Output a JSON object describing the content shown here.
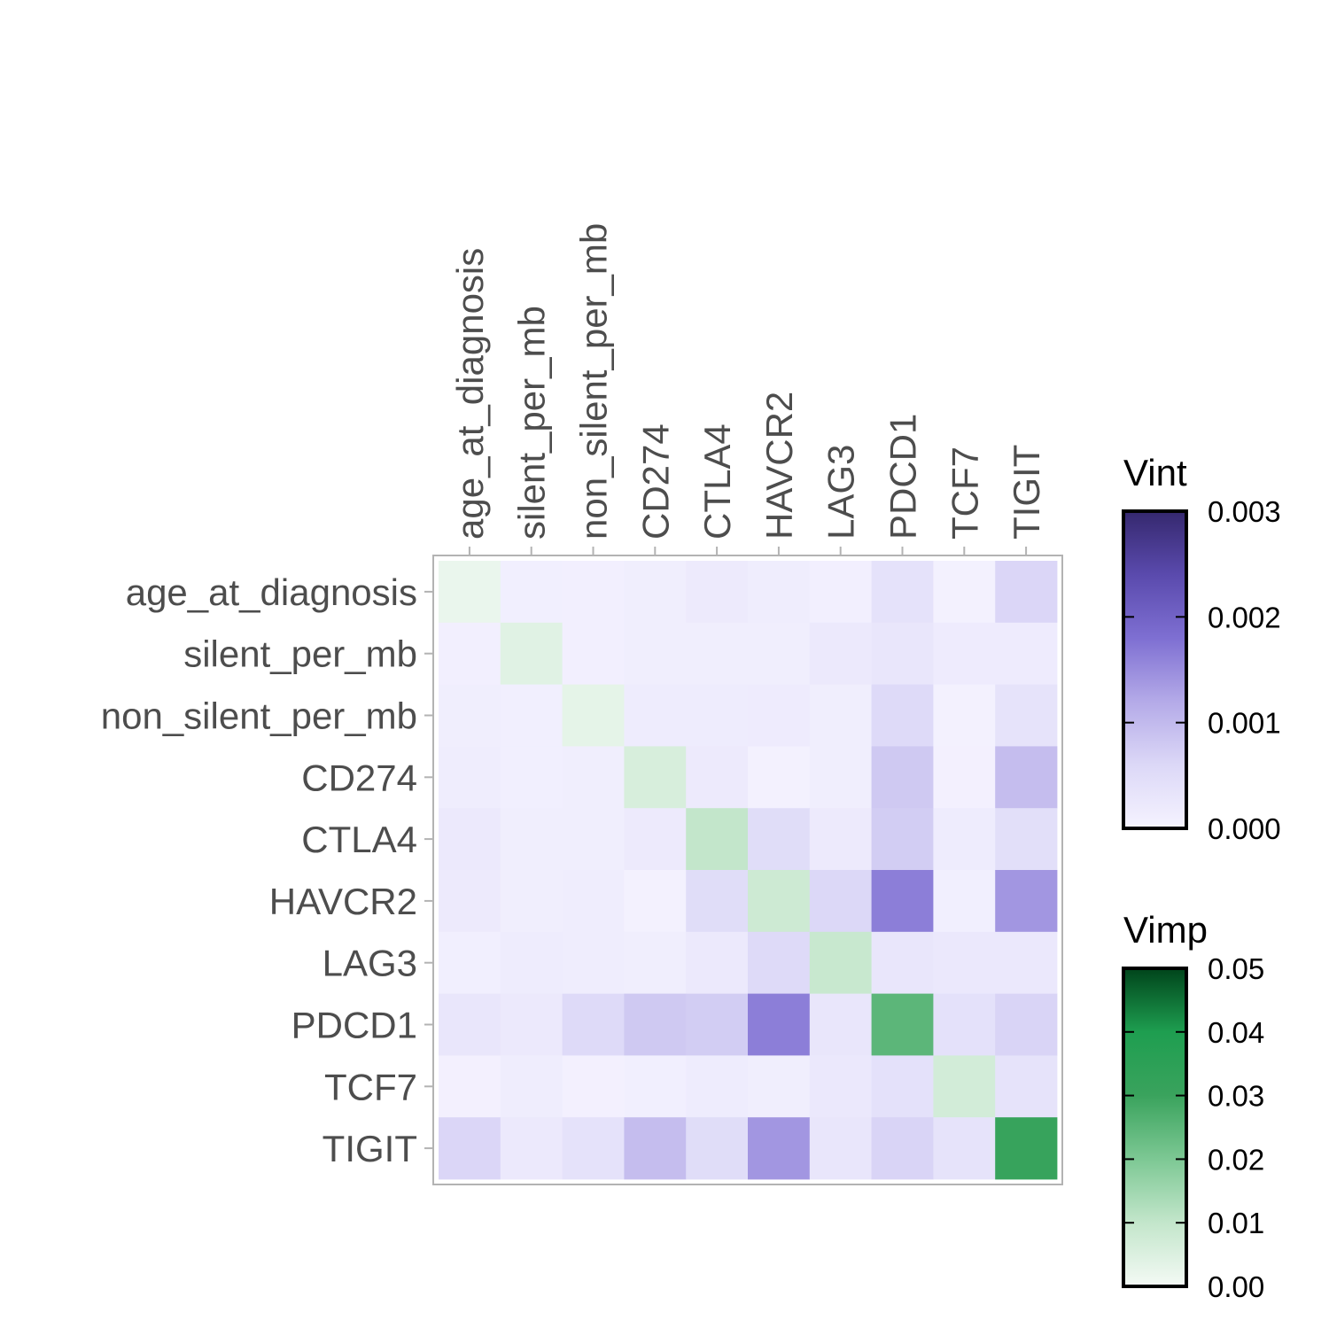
{
  "chart_data": {
    "type": "heatmap",
    "variables": [
      "age_at_diagnosis",
      "silent_per_mb",
      "non_silent_per_mb",
      "CD274",
      "CTLA4",
      "HAVCR2",
      "LAG3",
      "PDCD1",
      "TCF7",
      "TIGIT"
    ],
    "vint": [
      [
        null,
        0.0001,
        8e-05,
        0.00012,
        0.0002,
        0.00014,
        8e-05,
        0.00038,
        4e-05,
        0.00062
      ],
      [
        8e-05,
        null,
        8e-05,
        0.00012,
        0.00012,
        0.00012,
        0.00022,
        0.0003,
        0.00018,
        0.00018
      ],
      [
        0.00012,
        0.0001,
        null,
        0.00016,
        0.00016,
        0.00018,
        0.00012,
        0.00055,
        4e-05,
        0.00035
      ],
      [
        0.00014,
        0.0001,
        0.00012,
        null,
        0.0002,
        4e-05,
        0.00012,
        0.0008,
        6e-05,
        0.00095
      ],
      [
        0.00022,
        0.00012,
        0.00012,
        0.0002,
        null,
        0.0005,
        0.0002,
        0.00075,
        0.00016,
        0.00045
      ],
      [
        0.0002,
        0.00012,
        0.00014,
        4e-05,
        0.0005,
        null,
        0.0006,
        0.00165,
        0.0001,
        0.0014
      ],
      [
        0.0001,
        0.00016,
        0.00014,
        0.00012,
        0.00022,
        0.00055,
        null,
        0.0003,
        0.00025,
        0.00025
      ],
      [
        0.0003,
        0.00022,
        0.00055,
        0.0008,
        0.00075,
        0.00165,
        0.0003,
        null,
        0.0004,
        0.00065
      ],
      [
        6e-05,
        0.00014,
        6e-05,
        0.0001,
        0.00016,
        0.00012,
        0.00025,
        0.0004,
        null,
        0.00035
      ],
      [
        0.00062,
        0.00022,
        0.00038,
        0.00095,
        0.0005,
        0.0014,
        0.0003,
        0.00065,
        0.00035,
        null
      ]
    ],
    "vimp": [
      0.002,
      0.004,
      0.003,
      0.006,
      0.01,
      0.008,
      0.009,
      0.025,
      0.007,
      0.031
    ],
    "legends": [
      {
        "title": "Vint",
        "min": 0,
        "max": 0.003,
        "ticks": [
          0,
          0.001,
          0.002,
          0.003
        ],
        "tick_labels": [
          "0.000",
          "0.001",
          "0.002",
          "0.003"
        ],
        "colors": [
          "#f5f3ff",
          "#dcd8f7",
          "#b4aae8",
          "#7e6fd2",
          "#5a4aad",
          "#35286e"
        ]
      },
      {
        "title": "Vimp",
        "min": 0,
        "max": 0.05,
        "ticks": [
          0,
          0.01,
          0.02,
          0.03,
          0.04,
          0.05
        ],
        "tick_labels": [
          "0.00",
          "0.01",
          "0.02",
          "0.03",
          "0.04",
          "0.05"
        ],
        "colors": [
          "#f4faf5",
          "#c3e6cb",
          "#7dc894",
          "#3aa35d",
          "#1e9e50",
          "#00441b"
        ]
      }
    ],
    "xlabel": "",
    "ylabel": ""
  }
}
